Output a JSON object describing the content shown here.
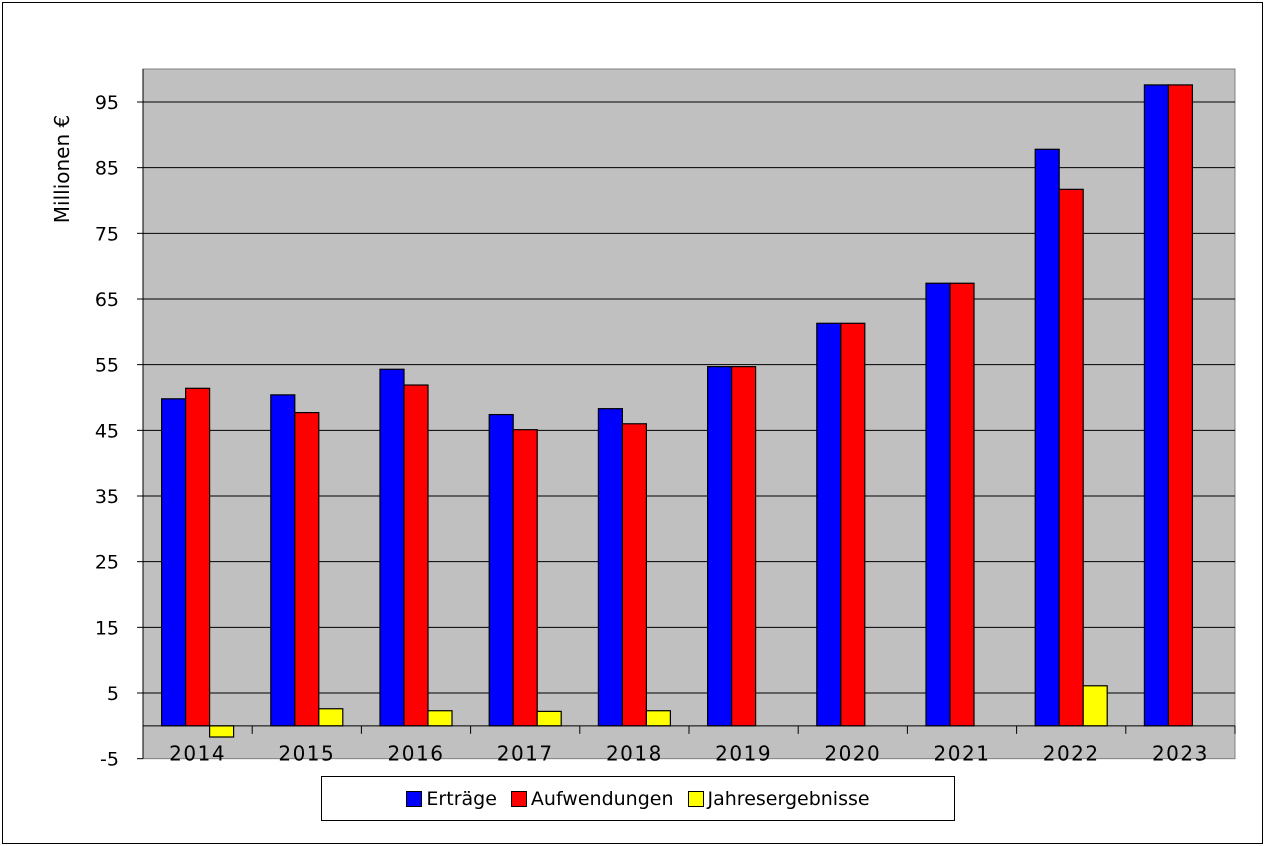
{
  "chart_data": {
    "type": "bar",
    "title": "",
    "xlabel": "",
    "ylabel": "Millionen €",
    "ylim": [
      -5,
      100
    ],
    "yticks": [
      -5,
      5,
      15,
      25,
      35,
      45,
      55,
      65,
      75,
      85,
      95
    ],
    "grid": true,
    "legend_position": "bottom",
    "background_color": "#c0c0c0",
    "categories": [
      "2014",
      "2015",
      "2016",
      "2017",
      "2018",
      "2019",
      "2020",
      "2021",
      "2022",
      "2023"
    ],
    "series": [
      {
        "name": "Erträge",
        "color": "#0000ff",
        "values": [
          49.8,
          50.4,
          54.3,
          47.4,
          48.3,
          54.7,
          61.3,
          67.4,
          87.8,
          97.6
        ]
      },
      {
        "name": "Aufwendungen",
        "color": "#ff0000",
        "values": [
          51.4,
          47.7,
          51.9,
          45.1,
          46.0,
          54.7,
          61.3,
          67.4,
          81.7,
          97.6
        ]
      },
      {
        "name": "Jahresergebnisse",
        "color": "#ffff00",
        "values": [
          -1.7,
          2.6,
          2.3,
          2.2,
          2.3,
          0,
          0,
          0,
          6.1,
          0
        ]
      }
    ]
  }
}
